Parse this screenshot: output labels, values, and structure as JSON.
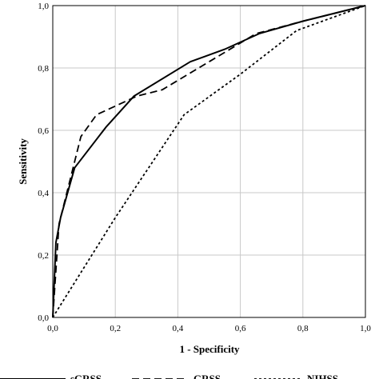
{
  "chart_data": {
    "type": "line",
    "xlabel": "1 - Specificity",
    "ylabel": "Sensitivity",
    "xlim": [
      0,
      1
    ],
    "ylim": [
      0,
      1
    ],
    "grid": true,
    "legend_position": "bottom",
    "x_ticks": [
      "0,0",
      "0,2",
      "0,4",
      "0,6",
      "0,8",
      "1,0"
    ],
    "y_ticks": [
      "0,0",
      "0,2",
      "0,4",
      "0,6",
      "0,8",
      "1,0"
    ],
    "series": [
      {
        "name": "sGRSS",
        "style": "solid",
        "color": "#000000",
        "points": [
          [
            0,
            0
          ],
          [
            0.01,
            0.24
          ],
          [
            0.025,
            0.32
          ],
          [
            0.07,
            0.48
          ],
          [
            0.17,
            0.61
          ],
          [
            0.26,
            0.71
          ],
          [
            0.44,
            0.82
          ],
          [
            0.55,
            0.86
          ],
          [
            0.66,
            0.91
          ],
          [
            0.8,
            0.95
          ],
          [
            1,
            1
          ]
        ]
      },
      {
        "name": "GRSS",
        "style": "dashed",
        "color": "#000000",
        "points": [
          [
            0,
            0
          ],
          [
            0.02,
            0.3
          ],
          [
            0.05,
            0.42
          ],
          [
            0.09,
            0.58
          ],
          [
            0.14,
            0.65
          ],
          [
            0.27,
            0.71
          ],
          [
            0.35,
            0.73
          ],
          [
            0.45,
            0.79
          ],
          [
            0.65,
            0.91
          ],
          [
            0.8,
            0.95
          ],
          [
            1,
            1
          ]
        ]
      },
      {
        "name": "NIHSS",
        "style": "dotted",
        "color": "#000000",
        "points": [
          [
            0,
            0
          ],
          [
            0.2,
            0.32
          ],
          [
            0.42,
            0.65
          ],
          [
            0.6,
            0.78
          ],
          [
            0.78,
            0.92
          ],
          [
            1,
            1
          ]
        ]
      }
    ]
  },
  "legend": {
    "items": [
      {
        "label": "sGRSS",
        "style": "solid"
      },
      {
        "label": "GRSS",
        "style": "dashed"
      },
      {
        "label": "NIHSS",
        "style": "dotted"
      }
    ]
  }
}
